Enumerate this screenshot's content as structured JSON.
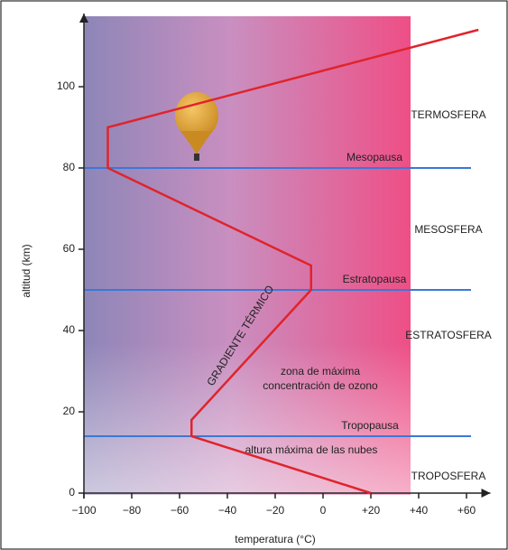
{
  "chart_data": {
    "type": "line",
    "x": [
      20,
      -55,
      -55,
      -5,
      -5,
      -90,
      -90,
      65
    ],
    "values": [
      0,
      14,
      18,
      50,
      56,
      80,
      90,
      114
    ],
    "color": "#e0242b",
    "xlabel": "temperatura (°C)",
    "ylabel": "altitud (km)",
    "xlim": [
      -100,
      70
    ],
    "ylim": [
      0,
      118
    ],
    "xticks": [
      {
        "value": -100,
        "label": "−100"
      },
      {
        "value": -80,
        "label": "−80"
      },
      {
        "value": -60,
        "label": "−60"
      },
      {
        "value": -40,
        "label": "−40"
      },
      {
        "value": -20,
        "label": "−20"
      },
      0,
      {
        "value": 20,
        "label": "+20"
      },
      {
        "value": 40,
        "label": "+40"
      },
      {
        "value": 60,
        "label": "+60"
      }
    ],
    "yticks": [
      0,
      20,
      40,
      60,
      80,
      100
    ],
    "reference_lines": [
      {
        "name": "Mesopausa",
        "value": 80,
        "color": "#3a78d8"
      },
      {
        "name": "Estratopausa",
        "value": 50,
        "color": "#3a78d8"
      },
      {
        "name": "Tropopausa",
        "value": 14,
        "color": "#3a78d8"
      }
    ],
    "layers": [
      "TERMOSFERA",
      "MESOSFERA",
      "ESTRATOSFERA",
      "TROPOSFERA"
    ],
    "annotations": [
      "GRADIENTE TÉRMICO",
      "zona de máxima concentración de ozono",
      "altura máxima de las nubes"
    ]
  }
}
